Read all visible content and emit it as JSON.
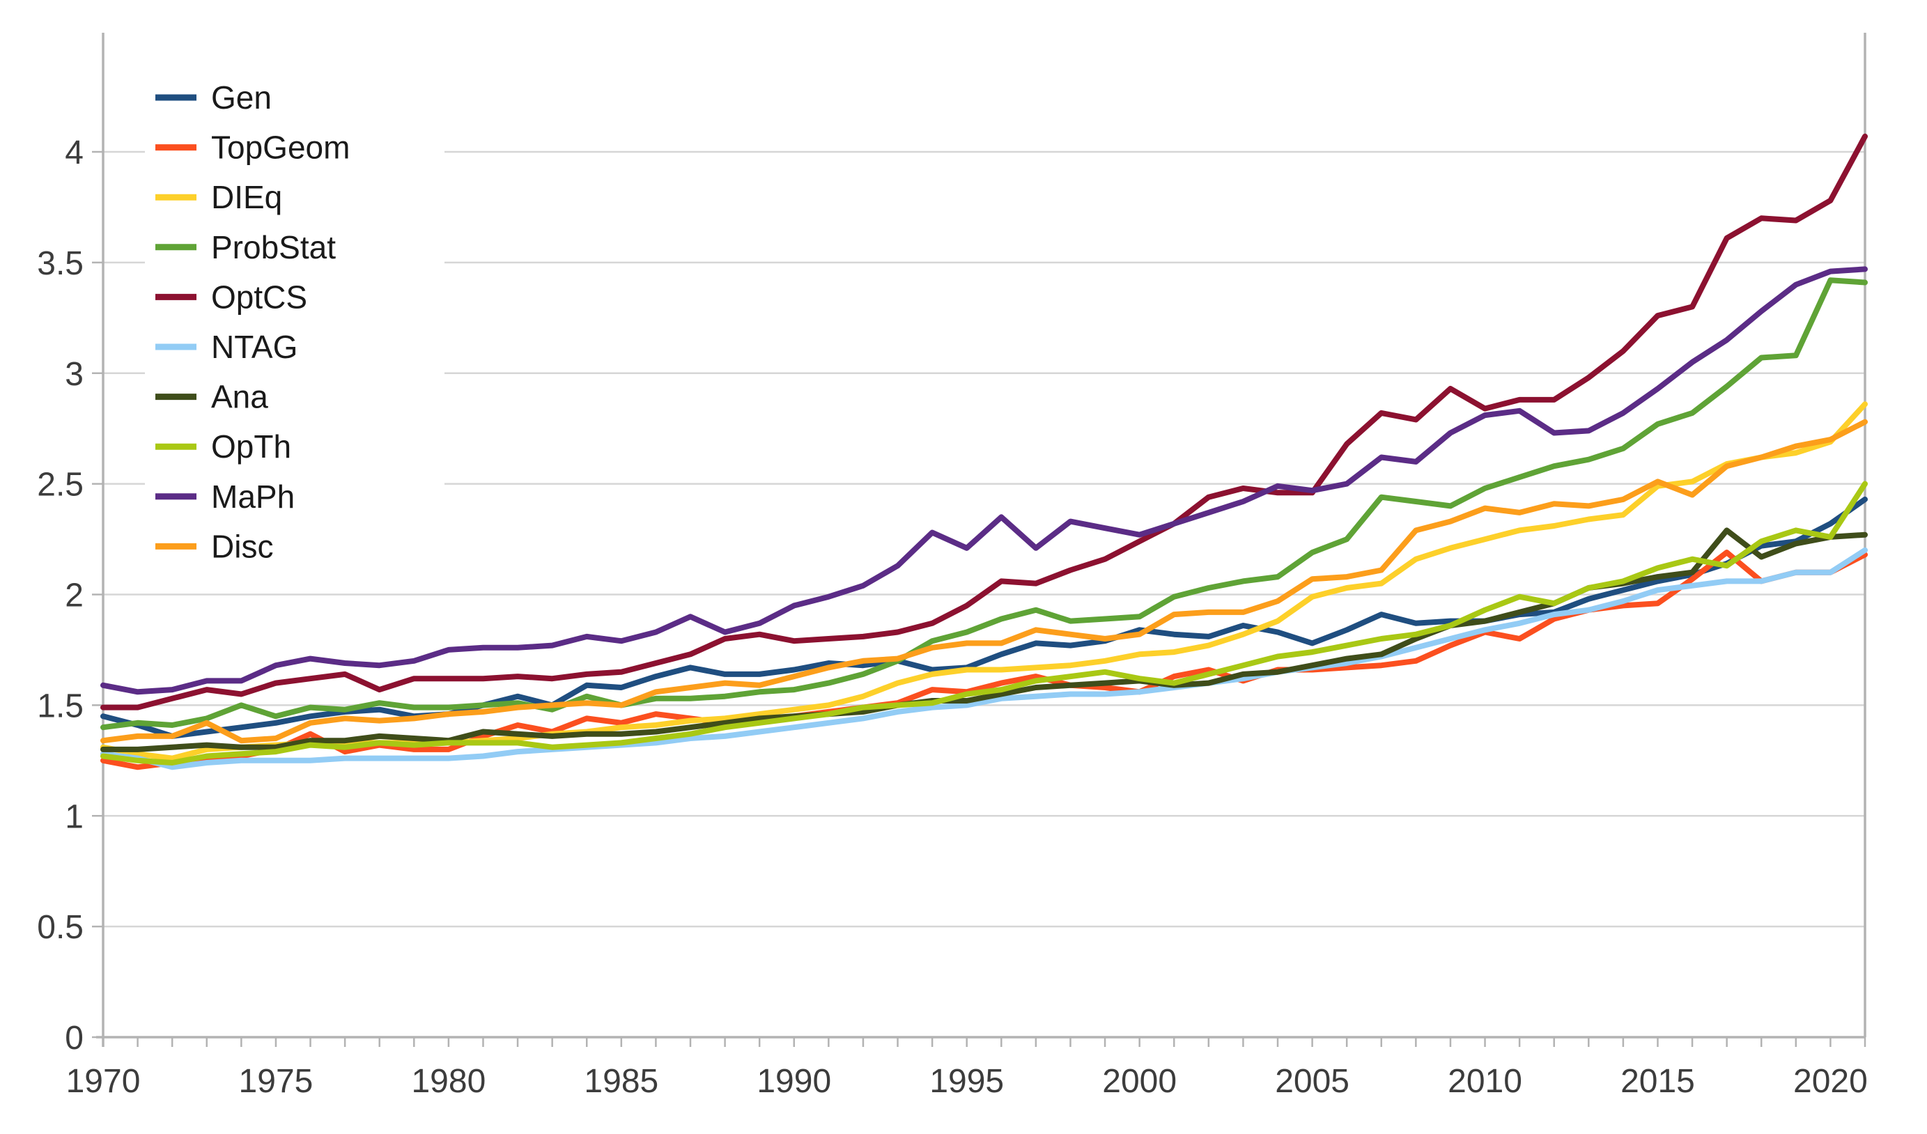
{
  "chart_data": {
    "type": "line",
    "title": "",
    "xlabel": "",
    "ylabel": "",
    "x": [
      1970,
      1971,
      1972,
      1973,
      1974,
      1975,
      1976,
      1977,
      1978,
      1979,
      1980,
      1981,
      1982,
      1983,
      1984,
      1985,
      1986,
      1987,
      1988,
      1989,
      1990,
      1991,
      1992,
      1993,
      1994,
      1995,
      1996,
      1997,
      1998,
      1999,
      2000,
      2001,
      2002,
      2003,
      2004,
      2005,
      2006,
      2007,
      2008,
      2009,
      2010,
      2011,
      2012,
      2013,
      2014,
      2015,
      2016,
      2017,
      2018,
      2019,
      2020,
      2021
    ],
    "xlim": [
      1970,
      2021
    ],
    "ylim": [
      0,
      4.54
    ],
    "y_ticks": [
      0,
      0.5,
      1,
      1.5,
      2,
      2.5,
      3,
      3.5,
      4
    ],
    "y_tick_labels": [
      "0",
      "0.5",
      "1",
      "1.5",
      "2",
      "2.5",
      "3",
      "3.5",
      "4"
    ],
    "x_label_years": [
      1970,
      1975,
      1980,
      1985,
      1990,
      1995,
      2000,
      2005,
      2010,
      2015,
      2020
    ],
    "grid": "horizontal",
    "legend_position": "top-left",
    "series": [
      {
        "name": "Gen",
        "color": "#1f4e80",
        "values": [
          1.45,
          1.41,
          1.36,
          1.38,
          1.4,
          1.42,
          1.45,
          1.47,
          1.48,
          1.45,
          1.46,
          1.5,
          1.54,
          1.5,
          1.59,
          1.58,
          1.63,
          1.67,
          1.64,
          1.64,
          1.66,
          1.69,
          1.68,
          1.7,
          1.66,
          1.67,
          1.73,
          1.78,
          1.77,
          1.79,
          1.84,
          1.82,
          1.81,
          1.86,
          1.83,
          1.78,
          1.84,
          1.91,
          1.87,
          1.88,
          1.88,
          1.91,
          1.92,
          1.98,
          2.02,
          2.06,
          2.09,
          2.14,
          2.22,
          2.24,
          2.32,
          2.43
        ]
      },
      {
        "name": "TopGeom",
        "color": "#fb4f1f",
        "values": [
          1.25,
          1.22,
          1.24,
          1.26,
          1.27,
          1.3,
          1.37,
          1.29,
          1.32,
          1.3,
          1.3,
          1.36,
          1.41,
          1.38,
          1.44,
          1.42,
          1.46,
          1.44,
          1.42,
          1.43,
          1.45,
          1.47,
          1.49,
          1.51,
          1.57,
          1.56,
          1.6,
          1.63,
          1.59,
          1.58,
          1.56,
          1.63,
          1.66,
          1.61,
          1.66,
          1.66,
          1.67,
          1.68,
          1.7,
          1.77,
          1.83,
          1.8,
          1.89,
          1.93,
          1.95,
          1.96,
          2.07,
          2.19,
          2.06,
          2.1,
          2.1,
          2.18
        ]
      },
      {
        "name": "DIEq",
        "color": "#fdd02a",
        "values": [
          1.31,
          1.28,
          1.26,
          1.3,
          1.31,
          1.32,
          1.33,
          1.33,
          1.33,
          1.33,
          1.33,
          1.34,
          1.35,
          1.37,
          1.38,
          1.4,
          1.41,
          1.43,
          1.44,
          1.46,
          1.48,
          1.5,
          1.54,
          1.6,
          1.64,
          1.66,
          1.66,
          1.67,
          1.68,
          1.7,
          1.73,
          1.74,
          1.77,
          1.82,
          1.88,
          1.99,
          2.03,
          2.05,
          2.16,
          2.21,
          2.25,
          2.29,
          2.31,
          2.34,
          2.36,
          2.49,
          2.51,
          2.59,
          2.62,
          2.64,
          2.69,
          2.86
        ]
      },
      {
        "name": "ProbStat",
        "color": "#5fa336",
        "values": [
          1.4,
          1.42,
          1.41,
          1.44,
          1.5,
          1.45,
          1.49,
          1.48,
          1.51,
          1.49,
          1.49,
          1.5,
          1.51,
          1.48,
          1.54,
          1.5,
          1.53,
          1.53,
          1.54,
          1.56,
          1.57,
          1.6,
          1.64,
          1.7,
          1.79,
          1.83,
          1.89,
          1.93,
          1.88,
          1.89,
          1.9,
          1.99,
          2.03,
          2.06,
          2.08,
          2.19,
          2.25,
          2.44,
          2.42,
          2.4,
          2.48,
          2.53,
          2.58,
          2.61,
          2.66,
          2.77,
          2.82,
          2.94,
          3.07,
          3.08,
          3.42,
          3.41
        ]
      },
      {
        "name": "OptCS",
        "color": "#8c1130",
        "values": [
          1.49,
          1.49,
          1.53,
          1.57,
          1.55,
          1.6,
          1.62,
          1.64,
          1.57,
          1.62,
          1.62,
          1.62,
          1.63,
          1.62,
          1.64,
          1.65,
          1.69,
          1.73,
          1.8,
          1.82,
          1.79,
          1.8,
          1.81,
          1.83,
          1.87,
          1.95,
          2.06,
          2.05,
          2.11,
          2.16,
          2.24,
          2.32,
          2.44,
          2.48,
          2.46,
          2.46,
          2.68,
          2.82,
          2.79,
          2.93,
          2.84,
          2.88,
          2.88,
          2.98,
          3.1,
          3.26,
          3.3,
          3.61,
          3.7,
          3.69,
          3.78,
          4.07
        ]
      },
      {
        "name": "NTAG",
        "color": "#92ccf5",
        "values": [
          1.28,
          1.26,
          1.22,
          1.24,
          1.25,
          1.25,
          1.25,
          1.26,
          1.26,
          1.26,
          1.26,
          1.27,
          1.29,
          1.3,
          1.31,
          1.32,
          1.33,
          1.35,
          1.36,
          1.38,
          1.4,
          1.42,
          1.44,
          1.47,
          1.49,
          1.5,
          1.53,
          1.54,
          1.55,
          1.55,
          1.56,
          1.58,
          1.6,
          1.62,
          1.65,
          1.67,
          1.69,
          1.72,
          1.76,
          1.8,
          1.84,
          1.87,
          1.91,
          1.93,
          1.97,
          2.02,
          2.04,
          2.06,
          2.06,
          2.1,
          2.1,
          2.2
        ]
      },
      {
        "name": "Ana",
        "color": "#3f4d1a",
        "values": [
          1.3,
          1.3,
          1.31,
          1.32,
          1.31,
          1.31,
          1.34,
          1.34,
          1.36,
          1.35,
          1.34,
          1.38,
          1.37,
          1.36,
          1.37,
          1.37,
          1.38,
          1.4,
          1.42,
          1.44,
          1.45,
          1.46,
          1.47,
          1.5,
          1.52,
          1.52,
          1.55,
          1.58,
          1.59,
          1.6,
          1.61,
          1.59,
          1.6,
          1.64,
          1.65,
          1.68,
          1.71,
          1.73,
          1.8,
          1.86,
          1.88,
          1.92,
          1.96,
          2.03,
          2.05,
          2.08,
          2.1,
          2.29,
          2.17,
          2.23,
          2.26,
          2.27
        ]
      },
      {
        "name": "OpTh",
        "color": "#a9c814",
        "values": [
          1.27,
          1.25,
          1.24,
          1.27,
          1.28,
          1.29,
          1.32,
          1.31,
          1.33,
          1.32,
          1.33,
          1.33,
          1.33,
          1.31,
          1.32,
          1.33,
          1.35,
          1.37,
          1.4,
          1.42,
          1.44,
          1.46,
          1.49,
          1.5,
          1.51,
          1.55,
          1.57,
          1.61,
          1.63,
          1.65,
          1.62,
          1.6,
          1.64,
          1.68,
          1.72,
          1.74,
          1.77,
          1.8,
          1.82,
          1.86,
          1.93,
          1.99,
          1.96,
          2.03,
          2.06,
          2.12,
          2.16,
          2.13,
          2.24,
          2.29,
          2.26,
          2.5
        ]
      },
      {
        "name": "MaPh",
        "color": "#5b2c86",
        "values": [
          1.59,
          1.56,
          1.57,
          1.61,
          1.61,
          1.68,
          1.71,
          1.69,
          1.68,
          1.7,
          1.75,
          1.76,
          1.76,
          1.77,
          1.81,
          1.79,
          1.83,
          1.9,
          1.83,
          1.87,
          1.95,
          1.99,
          2.04,
          2.13,
          2.28,
          2.21,
          2.35,
          2.21,
          2.33,
          2.3,
          2.27,
          2.32,
          2.37,
          2.42,
          2.49,
          2.47,
          2.5,
          2.62,
          2.6,
          2.73,
          2.81,
          2.83,
          2.73,
          2.74,
          2.82,
          2.93,
          3.05,
          3.15,
          3.28,
          3.4,
          3.46,
          3.47
        ]
      },
      {
        "name": "Disc",
        "color": "#fc9e1b",
        "values": [
          1.34,
          1.36,
          1.36,
          1.42,
          1.34,
          1.35,
          1.42,
          1.44,
          1.43,
          1.44,
          1.46,
          1.47,
          1.49,
          1.5,
          1.51,
          1.5,
          1.56,
          1.58,
          1.6,
          1.59,
          1.63,
          1.67,
          1.7,
          1.71,
          1.76,
          1.78,
          1.78,
          1.84,
          1.82,
          1.8,
          1.82,
          1.91,
          1.92,
          1.92,
          1.97,
          2.07,
          2.08,
          2.11,
          2.29,
          2.33,
          2.39,
          2.37,
          2.41,
          2.4,
          2.43,
          2.51,
          2.45,
          2.58,
          2.62,
          2.67,
          2.7,
          2.78
        ]
      }
    ],
    "colors": {
      "axis": "#b3b3b3",
      "grid": "#d6d6d6",
      "tick_label": "#3c3c3c",
      "legend_text": "#1a1a1a",
      "background": "#ffffff"
    }
  }
}
